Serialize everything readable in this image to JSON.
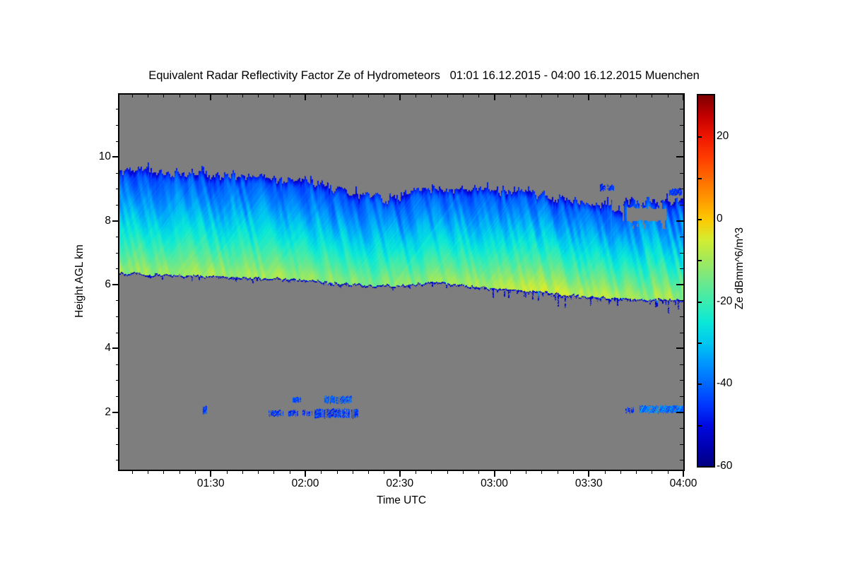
{
  "chart_data": {
    "type": "heatmap",
    "title": "Equivalent Radar Reflectivity Factor Ze of Hydrometeors   01:01 16.12.2015 - 04:00 16.12.2015 Muenchen",
    "xlabel": "Time UTC",
    "ylabel": "Height AGL km",
    "x_start_label": "01:01",
    "x_end_label": "04:00",
    "x_total_minutes": 179,
    "x_major_ticks": [
      {
        "t": 29,
        "label": "01:30"
      },
      {
        "t": 59,
        "label": "02:00"
      },
      {
        "t": 89,
        "label": "02:30"
      },
      {
        "t": 119,
        "label": "03:00"
      },
      {
        "t": 149,
        "label": "03:30"
      },
      {
        "t": 179,
        "label": "04:00"
      }
    ],
    "x_minor_every_min": 5,
    "y_range_km": [
      0.2,
      11.95
    ],
    "y_major_ticks": [
      2,
      4,
      6,
      8,
      10
    ],
    "y_minor_every_km": 0.5,
    "no_data_color": "#7e7e7e",
    "colorbar": {
      "label": "Ze dBmm^6/m^3",
      "range": [
        -60,
        30
      ],
      "major_ticks": [
        20,
        0,
        -20,
        -40,
        -60
      ],
      "minor_every": 10,
      "stops": [
        [
          -60,
          "#000082"
        ],
        [
          -55,
          "#0000b4"
        ],
        [
          -50,
          "#000ae1"
        ],
        [
          -45,
          "#0038ff"
        ],
        [
          -40,
          "#0068ff"
        ],
        [
          -35,
          "#0096ff"
        ],
        [
          -30,
          "#00c8f0"
        ],
        [
          -25,
          "#0ae8d8"
        ],
        [
          -20,
          "#3cecb0"
        ],
        [
          -15,
          "#6fe88a"
        ],
        [
          -10,
          "#a2e95c"
        ],
        [
          -5,
          "#d4ed33"
        ],
        [
          0,
          "#ffc800"
        ],
        [
          5,
          "#ff9800"
        ],
        [
          10,
          "#ff6a00"
        ],
        [
          15,
          "#ff3c00"
        ],
        [
          20,
          "#f01800"
        ],
        [
          25,
          "#c40000"
        ],
        [
          30,
          "#7f0000"
        ]
      ]
    },
    "cloud_band": {
      "ze_top_db": -44,
      "profile_exponent": 0.85,
      "keyframes_t_top_base_zemax": [
        [
          0,
          9.55,
          6.38,
          -9
        ],
        [
          12,
          9.5,
          6.32,
          -8.5
        ],
        [
          24,
          9.5,
          6.28,
          -8.5
        ],
        [
          36,
          9.45,
          6.24,
          -8
        ],
        [
          48,
          9.35,
          6.2,
          -8.5
        ],
        [
          58,
          9.28,
          6.14,
          -9
        ],
        [
          66,
          9.05,
          6.08,
          -10
        ],
        [
          74,
          8.85,
          6.02,
          -11
        ],
        [
          82,
          8.7,
          5.98,
          -11.5
        ],
        [
          88,
          8.72,
          5.96,
          -12
        ],
        [
          94,
          8.92,
          6.02,
          -11
        ],
        [
          99,
          9.03,
          6.09,
          -10
        ],
        [
          105,
          8.98,
          6.03,
          -9
        ],
        [
          111,
          9.04,
          5.96,
          -8
        ],
        [
          117,
          9.0,
          5.9,
          -7
        ],
        [
          123,
          8.95,
          5.86,
          -6
        ],
        [
          129,
          8.9,
          5.82,
          -5
        ],
        [
          135,
          8.8,
          5.78,
          -4.5
        ],
        [
          141,
          8.72,
          5.7,
          -5
        ],
        [
          147,
          8.62,
          5.64,
          -6
        ],
        [
          153,
          8.55,
          5.6,
          -7
        ],
        [
          159,
          8.62,
          5.57,
          -7.5
        ],
        [
          165,
          8.66,
          5.55,
          -8
        ],
        [
          171,
          8.6,
          5.55,
          -8.5
        ],
        [
          179,
          8.6,
          5.5,
          -9
        ]
      ],
      "holes": [
        {
          "t": [
            159.5,
            173.5
          ],
          "h": [
            8.0,
            8.42
          ]
        }
      ],
      "notches": [
        {
          "t": [
            156.3,
            159.8
          ],
          "top": 8.3
        }
      ],
      "top_specks": [
        {
          "t": [
            152.5,
            157.5
          ],
          "h": [
            8.95,
            9.12
          ]
        },
        {
          "t": [
            174.5,
            179
          ],
          "h": [
            8.82,
            9.0
          ]
        }
      ]
    },
    "low_clouds": [
      {
        "t": [
          26.5,
          27.5
        ],
        "h": [
          1.95,
          2.18
        ],
        "ze": -45,
        "density": 0.9
      },
      {
        "t": [
          47,
          52
        ],
        "h": [
          1.9,
          2.05
        ],
        "ze": -45,
        "density": 0.75
      },
      {
        "t": [
          53.5,
          56.5
        ],
        "h": [
          1.9,
          2.05
        ],
        "ze": -46,
        "density": 0.7
      },
      {
        "t": [
          55,
          57.5
        ],
        "h": [
          2.33,
          2.47
        ],
        "ze": -43,
        "density": 0.8
      },
      {
        "t": [
          58,
          61
        ],
        "h": [
          1.92,
          2.05
        ],
        "ze": -47,
        "density": 0.6
      },
      {
        "t": [
          62,
          75.5
        ],
        "h": [
          1.85,
          2.1
        ],
        "ze": -45,
        "density": 0.8
      },
      {
        "t": [
          65,
          73.5
        ],
        "h": [
          2.3,
          2.5
        ],
        "ze": -41,
        "density": 0.85
      },
      {
        "t": [
          160.5,
          163
        ],
        "h": [
          2.0,
          2.15
        ],
        "ze": -46,
        "density": 0.8
      },
      {
        "t": [
          165,
          179
        ],
        "h": [
          2.0,
          2.2
        ],
        "ze": -41,
        "density": 0.9,
        "cyan": true
      }
    ]
  }
}
